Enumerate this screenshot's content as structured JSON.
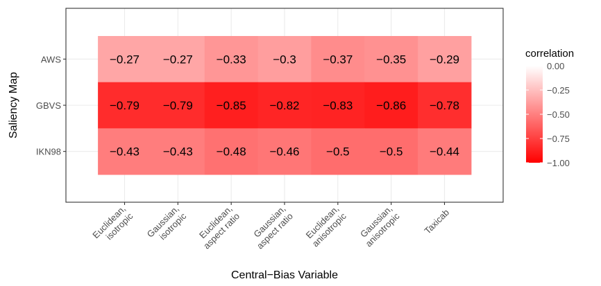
{
  "chart_data": {
    "type": "heatmap",
    "x_categories": [
      [
        "Euclidean,",
        "isotropic"
      ],
      [
        "Gaussian,",
        "isotropic"
      ],
      [
        "Euclidean,",
        "aspect ratio"
      ],
      [
        "Gaussian,",
        "aspect ratio"
      ],
      [
        "Euclidean,",
        "anisotropic"
      ],
      [
        "Gaussian,",
        "anisotropic"
      ],
      [
        "Taxicab"
      ]
    ],
    "y_categories": [
      "AWS",
      "GBVS",
      "IKN98"
    ],
    "values": [
      [
        -0.27,
        -0.27,
        -0.33,
        -0.3,
        -0.37,
        -0.35,
        -0.29
      ],
      [
        -0.79,
        -0.79,
        -0.85,
        -0.82,
        -0.83,
        -0.86,
        -0.78
      ],
      [
        -0.43,
        -0.43,
        -0.48,
        -0.46,
        -0.5,
        -0.5,
        -0.44
      ]
    ],
    "cell_labels": [
      [
        "−0.27",
        "−0.27",
        "−0.33",
        "−0.3",
        "−0.37",
        "−0.35",
        "−0.29"
      ],
      [
        "−0.79",
        "−0.79",
        "−0.85",
        "−0.82",
        "−0.83",
        "−0.86",
        "−0.78"
      ],
      [
        "−0.43",
        "−0.43",
        "−0.48",
        "−0.46",
        "−0.5",
        "−0.5",
        "−0.44"
      ]
    ],
    "xlabel": "Central−Bias Variable",
    "ylabel": "Saliency Map",
    "legend": {
      "title": "correlation",
      "range": [
        -1.0,
        0.0
      ],
      "ticks": [
        0.0,
        -0.25,
        -0.5,
        -0.75,
        -1.0
      ],
      "tick_labels": [
        "0.00",
        "−0.25",
        "−0.50",
        "−0.75",
        "−1.00"
      ],
      "low_color": "#ff0000",
      "high_color": "#ffffff",
      "placement": "right"
    },
    "grid": true
  },
  "colors": {
    "grid": "#ebebeb",
    "panel_border": "#333333",
    "tick": "#333333"
  }
}
